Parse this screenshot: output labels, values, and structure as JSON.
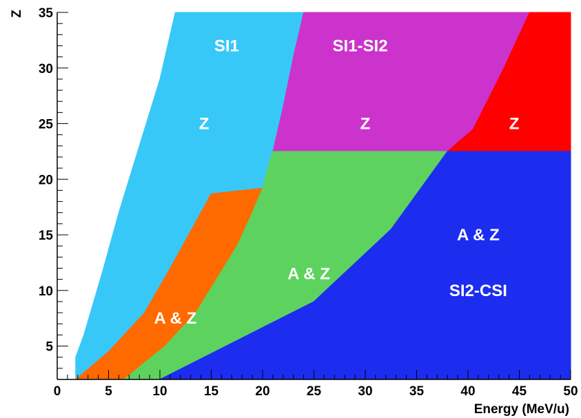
{
  "chart_data": {
    "type": "area",
    "title": "",
    "xlabel": "Energy (MeV/u)",
    "ylabel": "Z",
    "xlim": [
      0,
      50
    ],
    "ylim": [
      2,
      35
    ],
    "x_ticks": [
      "0",
      "5",
      "10",
      "15",
      "20",
      "25",
      "30",
      "35",
      "40",
      "45",
      "50"
    ],
    "y_ticks": [
      "5",
      "10",
      "15",
      "20",
      "25",
      "30",
      "35"
    ],
    "x_tick_values": [
      0,
      5,
      10,
      15,
      20,
      25,
      30,
      35,
      40,
      45,
      50
    ],
    "y_tick_values": [
      5,
      10,
      15,
      20,
      25,
      30,
      35
    ],
    "grid": false,
    "regions": [
      {
        "color": "#38c8f8",
        "polygon": [
          [
            1.8,
            2
          ],
          [
            1.8,
            4
          ],
          [
            2.6,
            6
          ],
          [
            4.5,
            12
          ],
          [
            6,
            17
          ],
          [
            8,
            23
          ],
          [
            10,
            29
          ],
          [
            11.5,
            35
          ],
          [
            24,
            35
          ],
          [
            23,
            31
          ],
          [
            22,
            26.5
          ],
          [
            21,
            22.5
          ],
          [
            20.5,
            21
          ],
          [
            20,
            19.2
          ],
          [
            19.5,
            19.2
          ],
          [
            15,
            18.7
          ],
          [
            15,
            18.7
          ],
          [
            11,
            12
          ],
          [
            8.5,
            8
          ],
          [
            5,
            4.5
          ],
          [
            2,
            2
          ]
        ]
      },
      {
        "color": "#ff6a00",
        "polygon": [
          [
            1.8,
            2
          ],
          [
            5,
            4.5
          ],
          [
            8.5,
            8
          ],
          [
            11,
            12
          ],
          [
            15,
            18.7
          ],
          [
            20,
            19.2
          ],
          [
            19,
            17
          ],
          [
            17.5,
            14
          ],
          [
            13.5,
            8
          ],
          [
            10.5,
            5
          ],
          [
            6.5,
            2
          ]
        ]
      },
      {
        "color": "#cc33cc",
        "polygon": [
          [
            24,
            35
          ],
          [
            46,
            35
          ],
          [
            43.5,
            30
          ],
          [
            40.5,
            24.5
          ],
          [
            38,
            22.5
          ],
          [
            21,
            22.5
          ],
          [
            22,
            26.5
          ],
          [
            23,
            31
          ]
        ]
      },
      {
        "color": "#ff0000",
        "polygon": [
          [
            46,
            35
          ],
          [
            50,
            35
          ],
          [
            50,
            22.5
          ],
          [
            38,
            22.5
          ],
          [
            40.5,
            24.5
          ],
          [
            43.5,
            30
          ]
        ]
      },
      {
        "color": "#5ed25e",
        "polygon": [
          [
            6.5,
            2
          ],
          [
            10.5,
            5
          ],
          [
            13.5,
            8
          ],
          [
            17.5,
            14
          ],
          [
            19,
            17
          ],
          [
            20,
            19.2
          ],
          [
            20.5,
            21
          ],
          [
            21,
            22.5
          ],
          [
            38,
            22.5
          ],
          [
            32.5,
            15.5
          ],
          [
            25,
            9
          ],
          [
            10,
            2
          ]
        ]
      },
      {
        "color": "#1c2df0",
        "polygon": [
          [
            10,
            2
          ],
          [
            25,
            9
          ],
          [
            32.5,
            15.5
          ],
          [
            38,
            22.5
          ],
          [
            50,
            22.5
          ],
          [
            50,
            2
          ]
        ]
      }
    ],
    "annotations": [
      {
        "text": "SI1",
        "x": 16.5,
        "y": 32
      },
      {
        "text": "SI1-SI2",
        "x": 29.5,
        "y": 32
      },
      {
        "text": "Z",
        "x": 14.3,
        "y": 25
      },
      {
        "text": "Z",
        "x": 30,
        "y": 25
      },
      {
        "text": "Z",
        "x": 44.5,
        "y": 25
      },
      {
        "text": "A & Z",
        "x": 41,
        "y": 15
      },
      {
        "text": "SI2-CSI",
        "x": 41,
        "y": 10
      },
      {
        "text": "A & Z",
        "x": 24.5,
        "y": 11.5
      },
      {
        "text": "A & Z",
        "x": 11.5,
        "y": 7.5
      }
    ]
  }
}
